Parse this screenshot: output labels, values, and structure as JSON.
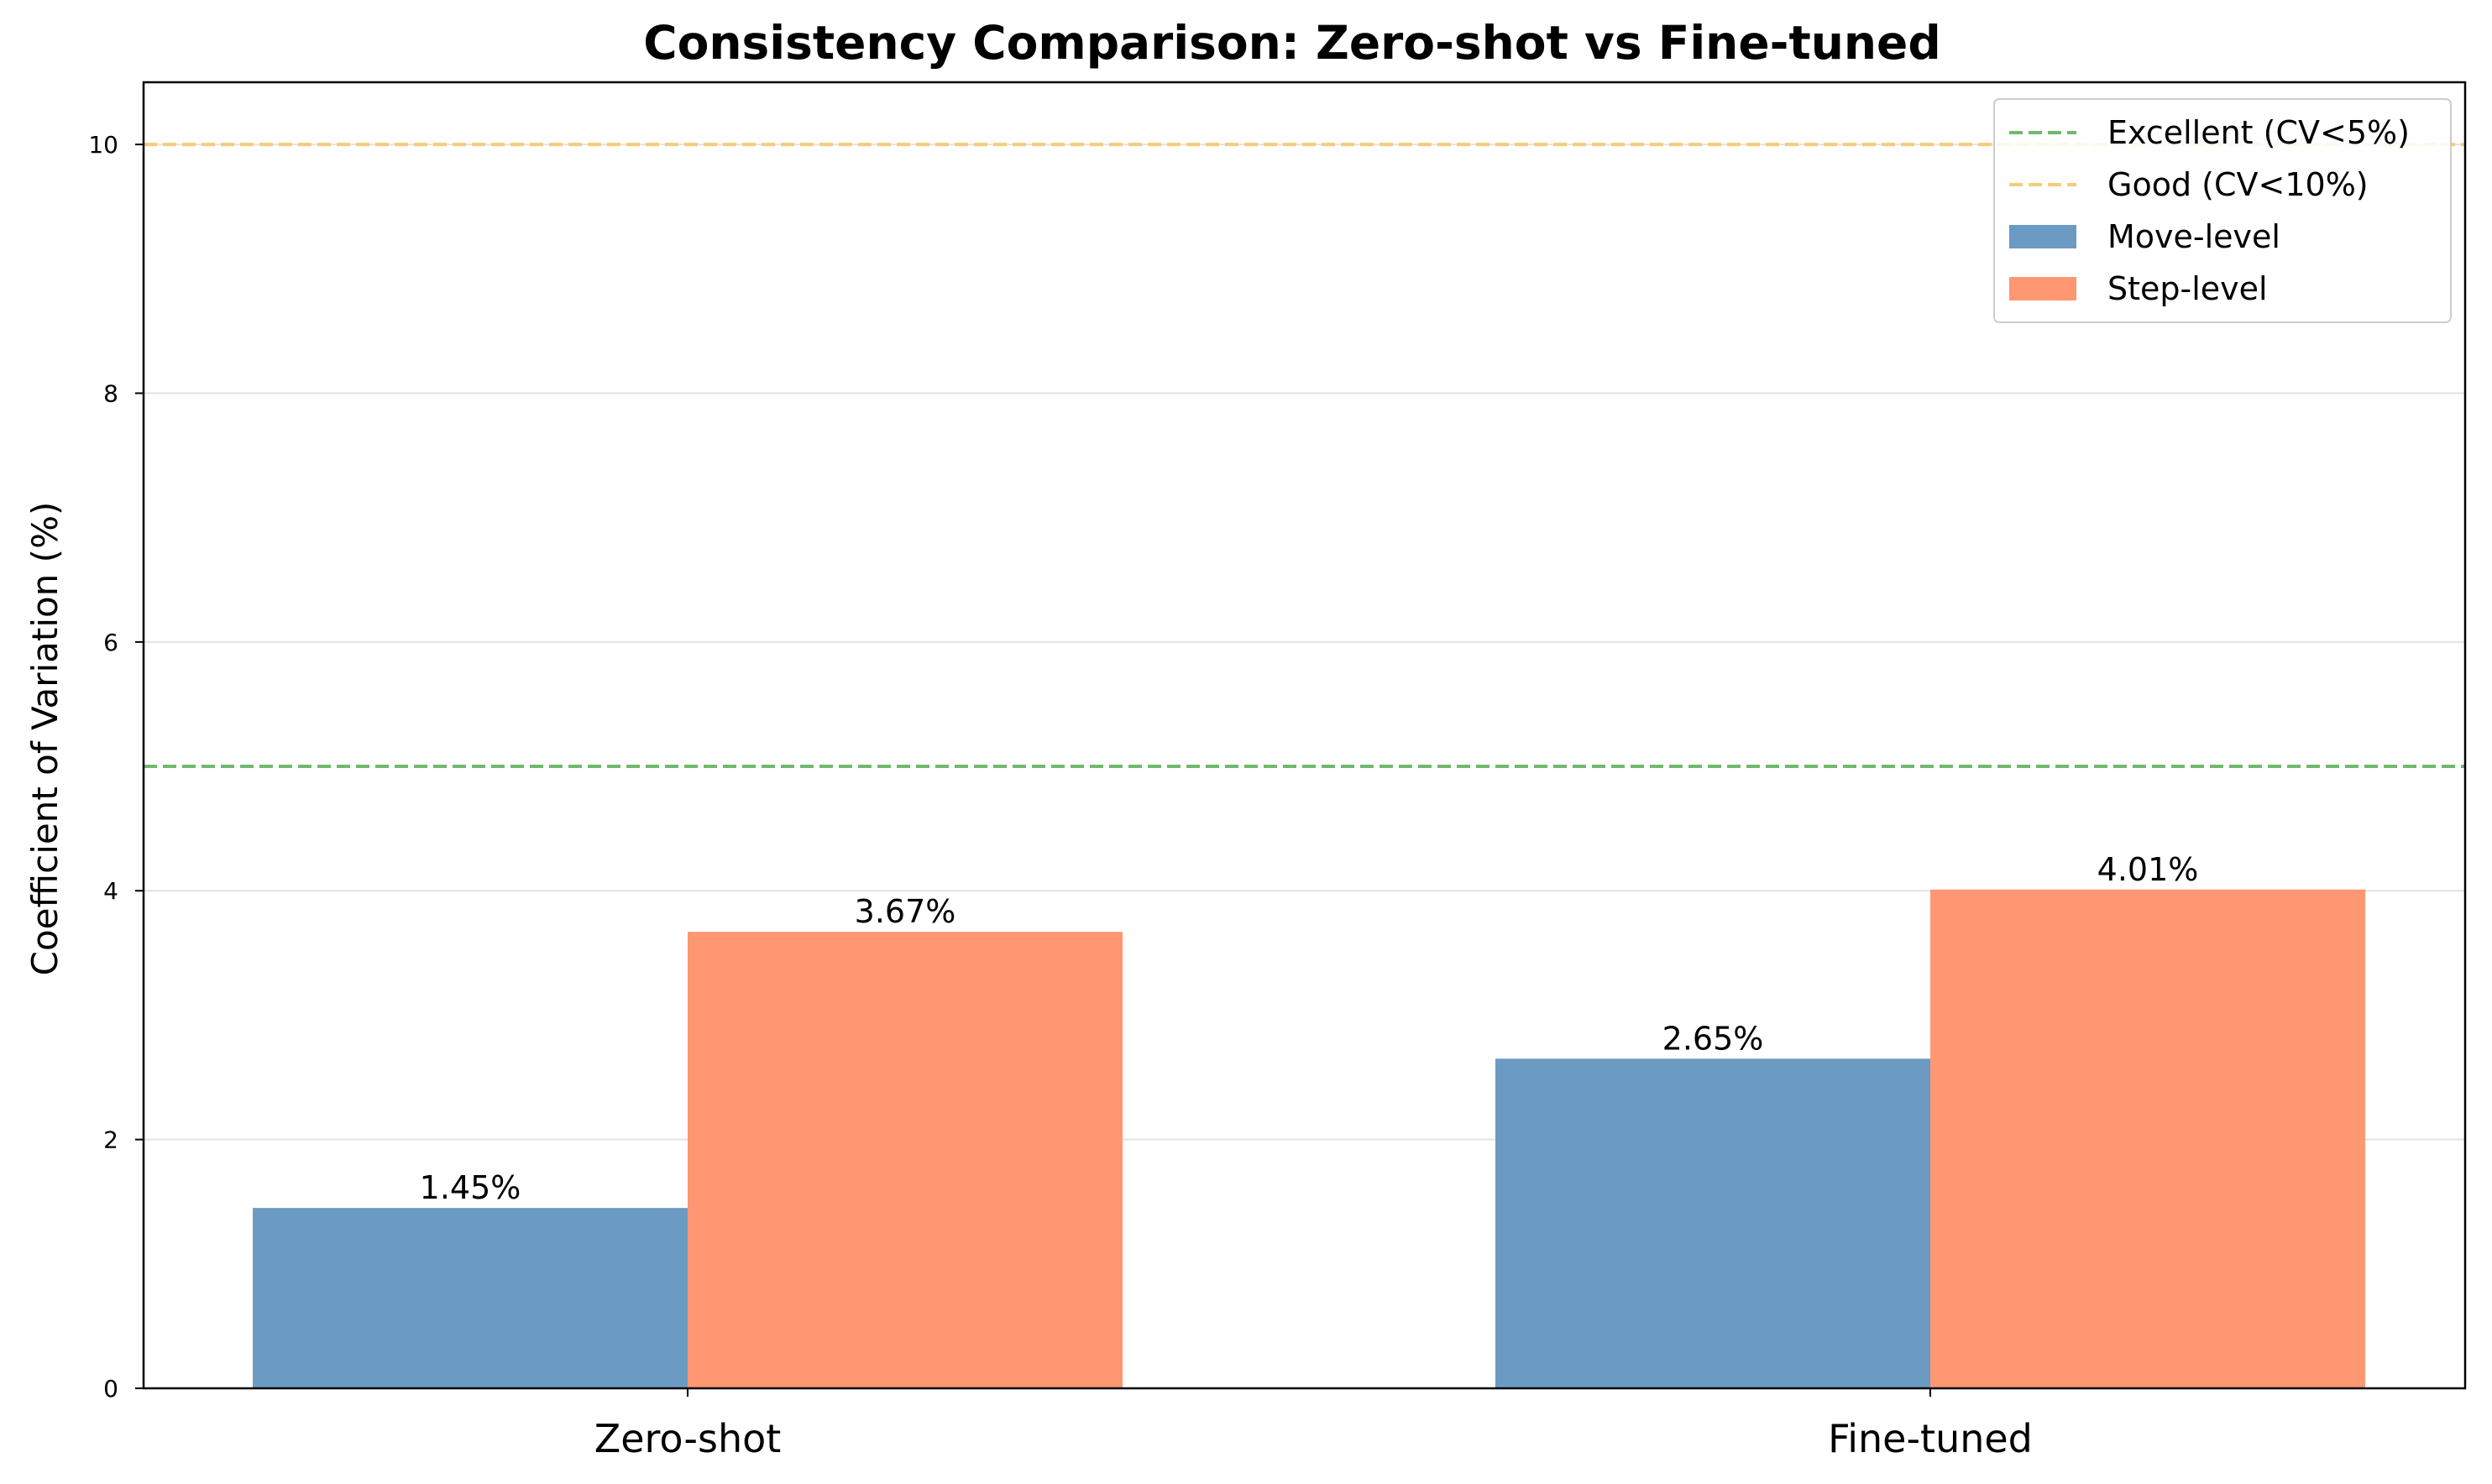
{
  "chart_data": {
    "type": "bar",
    "title": "Consistency Comparison: Zero-shot vs Fine-tuned",
    "xlabel": "",
    "ylabel": "Coefficient of Variation (%)",
    "ylim": [
      0,
      10.5
    ],
    "yticks": [
      0,
      2,
      4,
      6,
      8,
      10
    ],
    "categories": [
      "Zero-shot",
      "Fine-tuned"
    ],
    "series": [
      {
        "name": "Move-level",
        "values": [
          1.45,
          2.65
        ],
        "labels": [
          "1.45%",
          "2.65%"
        ],
        "color": "#6b9bc3"
      },
      {
        "name": "Step-level",
        "values": [
          3.67,
          4.01
        ],
        "labels": [
          "3.67%",
          "4.01%"
        ],
        "color": "#fe9772"
      }
    ],
    "reference_lines": [
      {
        "name": "Excellent (CV<5%)",
        "value": 5,
        "color": "#72b86e",
        "style": "dashed"
      },
      {
        "name": "Good (CV<10%)",
        "value": 10,
        "color": "#f5cc7a",
        "style": "dashed"
      }
    ],
    "grid": "y",
    "legend_position": "top-right"
  }
}
